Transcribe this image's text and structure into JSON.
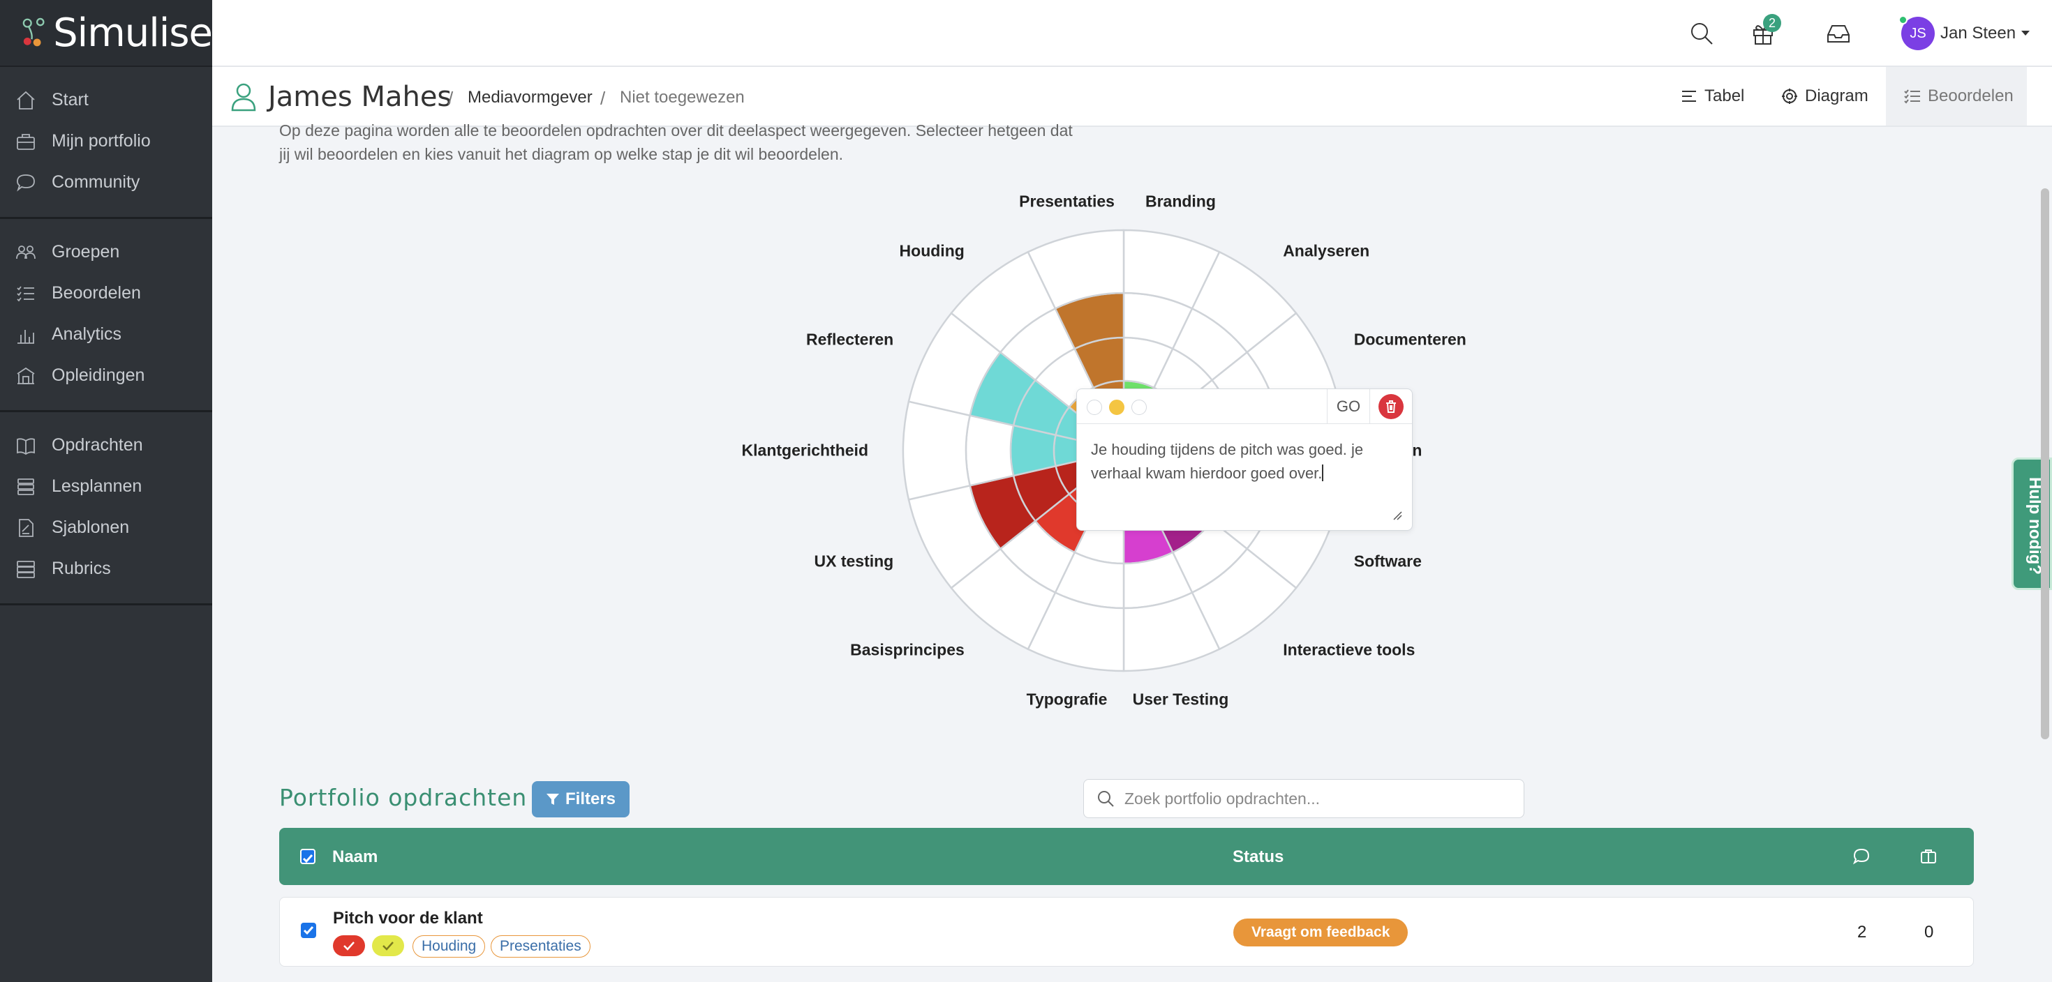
{
  "app": {
    "name": "Simulise"
  },
  "sidebar": {
    "groups": [
      [
        {
          "label": "Start",
          "icon": "home-icon"
        },
        {
          "label": "Mijn portfolio",
          "icon": "briefcase-icon"
        },
        {
          "label": "Community",
          "icon": "chat-icon"
        }
      ],
      [
        {
          "label": "Groepen",
          "icon": "users-icon"
        },
        {
          "label": "Beoordelen",
          "icon": "checklist-icon"
        },
        {
          "label": "Analytics",
          "icon": "bar-chart-icon"
        },
        {
          "label": "Opleidingen",
          "icon": "school-icon"
        }
      ],
      [
        {
          "label": "Opdrachten",
          "icon": "book-icon"
        },
        {
          "label": "Lesplannen",
          "icon": "stack-icon"
        },
        {
          "label": "Sjablonen",
          "icon": "file-icon"
        },
        {
          "label": "Rubrics",
          "icon": "server-icon"
        }
      ]
    ]
  },
  "topbar": {
    "notification_count": "2",
    "user_initials": "JS",
    "user_name": "Jan Steen"
  },
  "header": {
    "student_name": "James Mahes",
    "breadcrumb": [
      "Mediavormgever",
      "Niet toegewezen"
    ],
    "views": [
      {
        "label": "Tabel",
        "icon": "list-icon"
      },
      {
        "label": "Diagram",
        "icon": "gear-icon"
      },
      {
        "label": "Beoordelen",
        "icon": "checklist-icon",
        "active": true
      }
    ]
  },
  "intro": {
    "line1": "Op deze pagina worden alle te beoordelen opdrachten over dit deelaspect weergegeven. Selecteer hetgeen dat",
    "line2": "jij wil beoordelen en kies vanuit het diagram op welke stap je dit wil beoordelen."
  },
  "chart_data": {
    "type": "polar-area",
    "max_level": 4,
    "categories": [
      "Branding",
      "Analyseren",
      "Documenteren",
      "Materialen",
      "Software",
      "Interactieve tools",
      "User Testing",
      "Typografie",
      "Basisprincipes",
      "UX testing",
      "Klantgerichtheid",
      "Reflecteren",
      "Houding",
      "Presentaties"
    ],
    "labels_visible": [
      "Branding",
      "Analyseren",
      "Documenteren",
      "rialen",
      "Software",
      "Interactieve tools",
      "User Testing",
      "Typografie",
      "Basisprincipes",
      "UX testing",
      "Klantgerichtheid",
      "Reflecteren",
      "Houding",
      "Presentaties"
    ],
    "levels": [
      1,
      0,
      0,
      0,
      1,
      2,
      2,
      0,
      2,
      3,
      2,
      3,
      1,
      3
    ],
    "colors": [
      "#6ee06a",
      "#ffffff",
      "#ffffff",
      "#ffffff",
      "#1a10e6",
      "#a3208a",
      "#d63fcf",
      "#ffffff",
      "#e0392c",
      "#b8241c",
      "#6fd9d6",
      "#6fd9d6",
      "#e8a43a",
      "#c0752c"
    ],
    "inner_colors": [
      "#6ee06a",
      null,
      null,
      null,
      "#1a10e6",
      "#a3208a",
      "#d63fcf",
      null,
      "#e0392c",
      "#b8241c",
      "#6fd9d6",
      "#6fd9d6",
      "#e8a43a",
      "#c0752c"
    ]
  },
  "popup": {
    "go_label": "GO",
    "comment_line1": "Je houding tijdens de pitch was goed. je",
    "comment_line2": "verhaal kwam hierdoor goed over.",
    "dot_colors": [
      "#ffffff",
      "#f4c542",
      "#ffffff"
    ]
  },
  "help": {
    "label": "Hulp nodig?"
  },
  "portfolio": {
    "title": "Portfolio opdrachten",
    "filters_label": "Filters",
    "search_placeholder": "Zoek portfolio opdrachten...",
    "columns": {
      "name": "Naam",
      "status": "Status"
    },
    "rows": [
      {
        "name": "Pitch voor de klant",
        "check_tags": [
          {
            "color": "#e0392c"
          },
          {
            "color": "#e2e84a"
          }
        ],
        "tags": [
          "Houding",
          "Presentaties"
        ],
        "status": "Vraagt om feedback",
        "comments": "2",
        "attachments": "0"
      }
    ]
  }
}
